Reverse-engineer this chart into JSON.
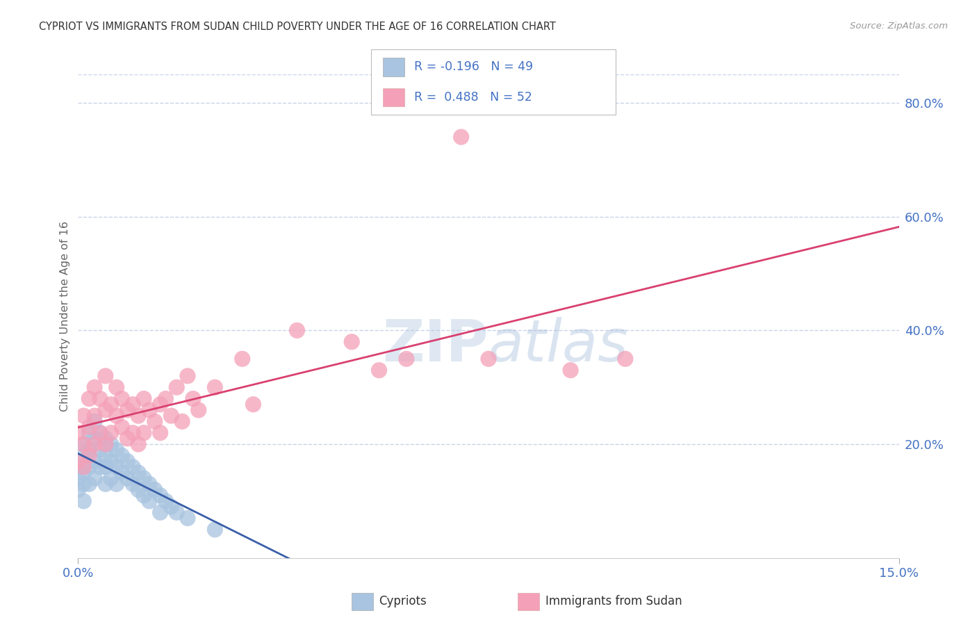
{
  "title": "CYPRIOT VS IMMIGRANTS FROM SUDAN CHILD POVERTY UNDER THE AGE OF 16 CORRELATION CHART",
  "source": "Source: ZipAtlas.com",
  "ylabel": "Child Poverty Under the Age of 16",
  "watermark": "ZIPatlas",
  "xmin": 0.0,
  "xmax": 0.15,
  "ymin": 0.0,
  "ymax": 0.85,
  "series1_name": "Cypriots",
  "series1_color": "#a8c4e0",
  "series1_R": -0.196,
  "series1_N": 49,
  "series1_line_color": "#3a5fa8",
  "series2_name": "Immigrants from Sudan",
  "series2_color": "#f4a0b8",
  "series2_R": 0.488,
  "series2_N": 52,
  "series2_line_color": "#d94070",
  "title_fontsize": 11,
  "axis_label_color": "#4472c4",
  "grid_color": "#c8d4e8",
  "background_color": "#ffffff",
  "cypriots_x": [
    0.0,
    0.0,
    0.0,
    0.001,
    0.001,
    0.001,
    0.001,
    0.001,
    0.002,
    0.002,
    0.002,
    0.002,
    0.003,
    0.003,
    0.003,
    0.003,
    0.004,
    0.004,
    0.004,
    0.005,
    0.005,
    0.005,
    0.005,
    0.006,
    0.006,
    0.006,
    0.007,
    0.007,
    0.007,
    0.008,
    0.008,
    0.009,
    0.009,
    0.01,
    0.01,
    0.011,
    0.011,
    0.012,
    0.012,
    0.013,
    0.013,
    0.014,
    0.015,
    0.015,
    0.016,
    0.017,
    0.018,
    0.02,
    0.025
  ],
  "cypriots_y": [
    0.16,
    0.14,
    0.12,
    0.2,
    0.18,
    0.15,
    0.13,
    0.1,
    0.22,
    0.19,
    0.16,
    0.13,
    0.24,
    0.21,
    0.17,
    0.14,
    0.22,
    0.19,
    0.16,
    0.21,
    0.18,
    0.16,
    0.13,
    0.2,
    0.17,
    0.14,
    0.19,
    0.16,
    0.13,
    0.18,
    0.15,
    0.17,
    0.14,
    0.16,
    0.13,
    0.15,
    0.12,
    0.14,
    0.11,
    0.13,
    0.1,
    0.12,
    0.11,
    0.08,
    0.1,
    0.09,
    0.08,
    0.07,
    0.05
  ],
  "sudan_x": [
    0.0,
    0.0,
    0.001,
    0.001,
    0.001,
    0.002,
    0.002,
    0.002,
    0.003,
    0.003,
    0.003,
    0.004,
    0.004,
    0.005,
    0.005,
    0.005,
    0.006,
    0.006,
    0.007,
    0.007,
    0.008,
    0.008,
    0.009,
    0.009,
    0.01,
    0.01,
    0.011,
    0.011,
    0.012,
    0.012,
    0.013,
    0.014,
    0.015,
    0.015,
    0.016,
    0.017,
    0.018,
    0.019,
    0.02,
    0.021,
    0.022,
    0.025,
    0.03,
    0.032,
    0.04,
    0.05,
    0.055,
    0.06,
    0.07,
    0.075,
    0.09,
    0.1
  ],
  "sudan_y": [
    0.22,
    0.17,
    0.25,
    0.2,
    0.16,
    0.28,
    0.23,
    0.18,
    0.3,
    0.25,
    0.2,
    0.28,
    0.22,
    0.32,
    0.26,
    0.2,
    0.27,
    0.22,
    0.3,
    0.25,
    0.28,
    0.23,
    0.26,
    0.21,
    0.27,
    0.22,
    0.25,
    0.2,
    0.28,
    0.22,
    0.26,
    0.24,
    0.27,
    0.22,
    0.28,
    0.25,
    0.3,
    0.24,
    0.32,
    0.28,
    0.26,
    0.3,
    0.35,
    0.27,
    0.4,
    0.38,
    0.33,
    0.35,
    0.74,
    0.35,
    0.33,
    0.35
  ],
  "legend_R_label1": "R = -0.196   N = 49",
  "legend_R_label2": "R =  0.488   N = 52"
}
